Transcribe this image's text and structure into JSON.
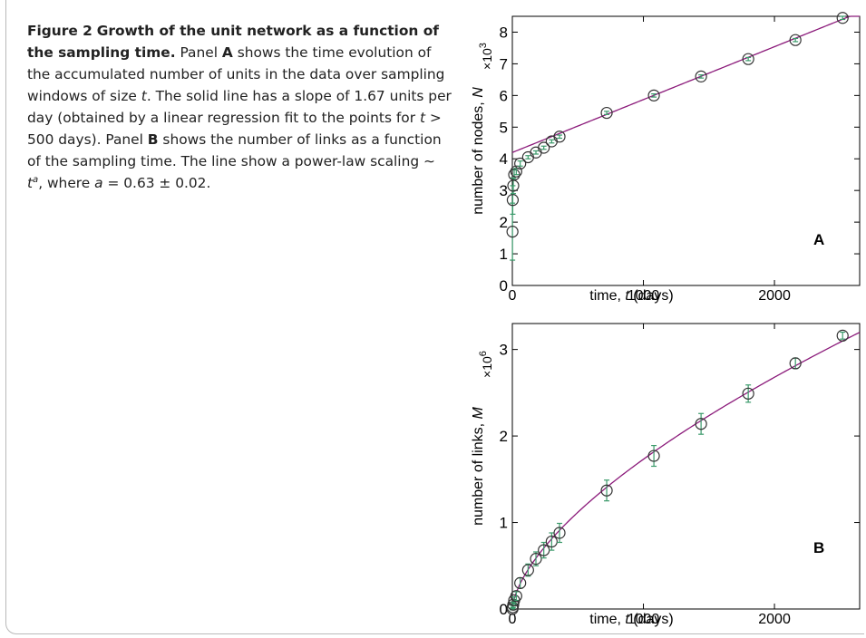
{
  "caption": {
    "figure_label": "Figure 2",
    "title": "Growth of the unit network as a function of the sampling time.",
    "t1": " Panel ",
    "panel_a": "A",
    "t2": " shows the time evolution of the accumulated number of units in the data over sampling windows of size ",
    "var_t": "t",
    "t3": ". The solid line has a slope of 1.67 units per day (obtained by a linear regression fit to the points for ",
    "var_t2": "t",
    "t4": " > 500 days). Panel ",
    "panel_b": "B",
    "t5": " shows the number of links as a function of the sampling time. The line show a power-law scaling ∼ ",
    "var_t3": "t",
    "sup_a": "a",
    "t6": ", where ",
    "var_a": "a",
    "t7": " = 0.63 ± 0.02."
  },
  "colors": {
    "fit_line": "#8b1a7a",
    "errorbar": "#3a9a6a",
    "marker": "#333333",
    "axis": "#000000"
  },
  "chart_data": [
    {
      "type": "scatter",
      "panel_label": "A",
      "xlabel_prefix": "time, ",
      "xlabel_var": "t",
      "xlabel_suffix": " (days)",
      "ylabel_prefix": "number of nodes, ",
      "ylabel_var": "N",
      "multiplier_base": "×10",
      "multiplier_exp": "3",
      "xlim": [
        0,
        2650
      ],
      "ylim": [
        0,
        8.5
      ],
      "xticks": [
        0,
        1000,
        2000
      ],
      "yticks": [
        0,
        1,
        2,
        3,
        4,
        5,
        6,
        7,
        8
      ],
      "x": [
        1,
        3,
        7,
        14,
        30,
        60,
        120,
        180,
        240,
        300,
        360,
        720,
        1080,
        1440,
        1800,
        2160,
        2520
      ],
      "y": [
        1.7,
        2.7,
        3.15,
        3.5,
        3.6,
        3.85,
        4.05,
        4.2,
        4.35,
        4.55,
        4.7,
        5.45,
        6.0,
        6.6,
        7.15,
        7.75,
        8.45
      ],
      "yerr": [
        0.9,
        0.45,
        0.25,
        0.15,
        0.1,
        0.08,
        0.05,
        0.05,
        0.05,
        0.05,
        0.05,
        0.05,
        0.05,
        0.05,
        0.05,
        0.05,
        0.05
      ],
      "fit": {
        "kind": "linear",
        "intercept": 4.2,
        "slope_per_day": 0.00167
      }
    },
    {
      "type": "scatter",
      "panel_label": "B",
      "xlabel_prefix": "time, ",
      "xlabel_var": "t",
      "xlabel_suffix": " (days)",
      "ylabel_prefix": "number of links, ",
      "ylabel_var": "M",
      "multiplier_base": "×10",
      "multiplier_exp": "6",
      "xlim": [
        0,
        2650
      ],
      "ylim": [
        0,
        3.3
      ],
      "xticks": [
        0,
        1000,
        2000
      ],
      "yticks": [
        0,
        1,
        2,
        3
      ],
      "x": [
        1,
        3,
        7,
        14,
        30,
        60,
        120,
        180,
        240,
        300,
        360,
        720,
        1080,
        1440,
        1800,
        2160,
        2520
      ],
      "y": [
        0.0,
        0.02,
        0.05,
        0.1,
        0.15,
        0.3,
        0.45,
        0.58,
        0.68,
        0.78,
        0.88,
        1.37,
        1.77,
        2.14,
        2.49,
        2.84,
        3.16
      ],
      "yerr": [
        0.01,
        0.02,
        0.03,
        0.04,
        0.05,
        0.06,
        0.07,
        0.08,
        0.09,
        0.1,
        0.11,
        0.12,
        0.12,
        0.12,
        0.1,
        0.06,
        0.04
      ],
      "fit": {
        "kind": "power",
        "exponent": 0.63,
        "prefactor": 0.0223
      }
    }
  ]
}
